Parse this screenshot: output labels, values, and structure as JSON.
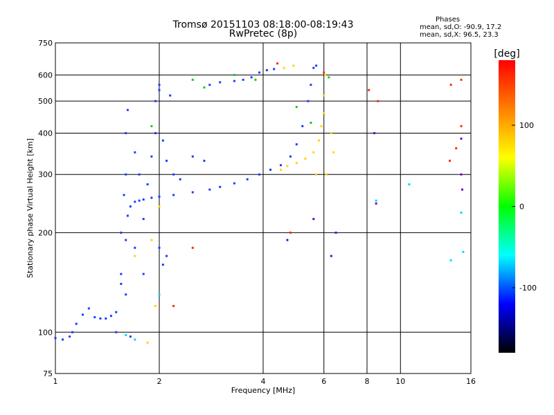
{
  "chart_data": {
    "type": "scatter",
    "title": "Tromsø 20151103 08:18:00-08:19:43",
    "subtitle": "RwPretec (8p)",
    "xlabel": "Frequency [MHz]",
    "ylabel": "Stationary phase Virtual Height [km]",
    "xscale": "log",
    "yscale": "log",
    "xlim": [
      1,
      16
    ],
    "ylim": [
      75,
      750
    ],
    "x_ticks": [
      1,
      2,
      4,
      6,
      8,
      10,
      16
    ],
    "y_ticks": [
      75,
      100,
      200,
      300,
      400,
      500,
      600,
      750
    ],
    "grid": true,
    "phase_info": {
      "title": "Phases",
      "line_o": "mean, sd,O: -90.9, 17.2",
      "line_x": "mean, sd,X:  96.5, 23.3"
    },
    "colorbar": {
      "label": "[deg]",
      "range": [
        -180,
        180
      ],
      "ticks": [
        100,
        0,
        -100
      ],
      "colors": [
        "#ff0000",
        "#ff8000",
        "#ffff00",
        "#00ff00",
        "#00ffff",
        "#0000ff",
        "#000000"
      ]
    },
    "series": [
      {
        "color": "#1a3cff",
        "points": [
          [
            1.0,
            96
          ],
          [
            1.05,
            95
          ],
          [
            1.1,
            97
          ],
          [
            1.12,
            100
          ],
          [
            1.15,
            106
          ],
          [
            1.2,
            113
          ],
          [
            1.25,
            118
          ],
          [
            1.3,
            111
          ],
          [
            1.35,
            110
          ],
          [
            1.4,
            110
          ],
          [
            1.45,
            112
          ],
          [
            1.5,
            115
          ],
          [
            1.55,
            140
          ],
          [
            1.6,
            190
          ],
          [
            1.62,
            225
          ],
          [
            1.65,
            240
          ],
          [
            1.7,
            248
          ],
          [
            1.75,
            250
          ],
          [
            1.8,
            252
          ],
          [
            1.9,
            255
          ],
          [
            2.0,
            257
          ],
          [
            2.2,
            260
          ],
          [
            2.5,
            265
          ],
          [
            2.8,
            270
          ],
          [
            3.0,
            275
          ],
          [
            3.3,
            282
          ],
          [
            3.6,
            290
          ],
          [
            3.9,
            300
          ],
          [
            4.2,
            310
          ],
          [
            4.5,
            320
          ],
          [
            4.8,
            340
          ],
          [
            5.0,
            370
          ],
          [
            5.2,
            420
          ],
          [
            5.4,
            500
          ],
          [
            5.5,
            560
          ],
          [
            5.6,
            630
          ],
          [
            5.7,
            640
          ]
        ]
      },
      {
        "color": "#1a3cff",
        "points": [
          [
            1.55,
            150
          ],
          [
            1.55,
            200
          ],
          [
            1.58,
            260
          ],
          [
            1.6,
            300
          ],
          [
            1.6,
            400
          ],
          [
            1.62,
            470
          ],
          [
            1.7,
            180
          ],
          [
            1.7,
            350
          ],
          [
            1.75,
            300
          ],
          [
            1.8,
            220
          ],
          [
            1.85,
            280
          ],
          [
            1.9,
            340
          ],
          [
            1.95,
            400
          ],
          [
            1.95,
            500
          ],
          [
            2.0,
            540
          ],
          [
            2.0,
            560
          ],
          [
            2.0,
            180
          ],
          [
            2.05,
            380
          ],
          [
            2.1,
            330
          ],
          [
            2.15,
            520
          ],
          [
            2.2,
            300
          ],
          [
            2.3,
            290
          ],
          [
            2.5,
            340
          ],
          [
            2.7,
            330
          ],
          [
            2.8,
            560
          ],
          [
            3.0,
            570
          ],
          [
            3.3,
            575
          ],
          [
            3.5,
            580
          ],
          [
            3.7,
            590
          ],
          [
            3.9,
            610
          ],
          [
            4.1,
            620
          ],
          [
            4.3,
            625
          ],
          [
            1.65,
            97
          ],
          [
            1.5,
            100
          ],
          [
            1.6,
            130
          ],
          [
            1.8,
            150
          ],
          [
            2.05,
            160
          ],
          [
            2.1,
            170
          ]
        ]
      },
      {
        "color": "#ffd400",
        "points": [
          [
            4.5,
            310
          ],
          [
            4.7,
            318
          ],
          [
            5.0,
            325
          ],
          [
            5.3,
            335
          ],
          [
            5.6,
            350
          ],
          [
            5.8,
            380
          ],
          [
            5.9,
            420
          ],
          [
            6.0,
            460
          ],
          [
            6.0,
            520
          ],
          [
            6.05,
            600
          ],
          [
            6.1,
            300
          ],
          [
            6.3,
            400
          ],
          [
            6.4,
            350
          ],
          [
            5.7,
            300
          ],
          [
            4.6,
            630
          ],
          [
            4.9,
            640
          ],
          [
            1.7,
            170
          ],
          [
            1.9,
            190
          ],
          [
            2.0,
            240
          ],
          [
            1.85,
            93
          ],
          [
            1.95,
            120
          ]
        ]
      },
      {
        "color": "#ff2a00",
        "points": [
          [
            4.4,
            650
          ],
          [
            4.8,
            200
          ],
          [
            6.0,
            610
          ],
          [
            8.1,
            540
          ],
          [
            14.0,
            560
          ],
          [
            14.5,
            360
          ],
          [
            15.0,
            420
          ],
          [
            15.0,
            580
          ],
          [
            2.2,
            120
          ],
          [
            2.5,
            180
          ],
          [
            8.6,
            500
          ],
          [
            13.9,
            330
          ]
        ]
      },
      {
        "color": "#18c818",
        "points": [
          [
            2.7,
            550
          ],
          [
            3.3,
            600
          ],
          [
            3.8,
            580
          ],
          [
            5.0,
            480
          ],
          [
            5.5,
            430
          ],
          [
            6.2,
            590
          ],
          [
            1.9,
            420
          ],
          [
            2.5,
            580
          ]
        ]
      },
      {
        "color": "#00d8ff",
        "points": [
          [
            8.5,
            250
          ],
          [
            10.6,
            280
          ],
          [
            15.0,
            230
          ],
          [
            14.0,
            165
          ],
          [
            15.2,
            175
          ],
          [
            1.6,
            98
          ],
          [
            1.7,
            95
          ],
          [
            2.0,
            130
          ]
        ]
      },
      {
        "color": "#6a00c8",
        "points": [
          [
            8.4,
            400
          ],
          [
            8.5,
            245
          ],
          [
            15.0,
            385
          ],
          [
            15.0,
            300
          ],
          [
            15.1,
            270
          ],
          [
            5.6,
            220
          ],
          [
            6.5,
            200
          ],
          [
            6.3,
            170
          ],
          [
            4.7,
            190
          ]
        ]
      }
    ]
  }
}
